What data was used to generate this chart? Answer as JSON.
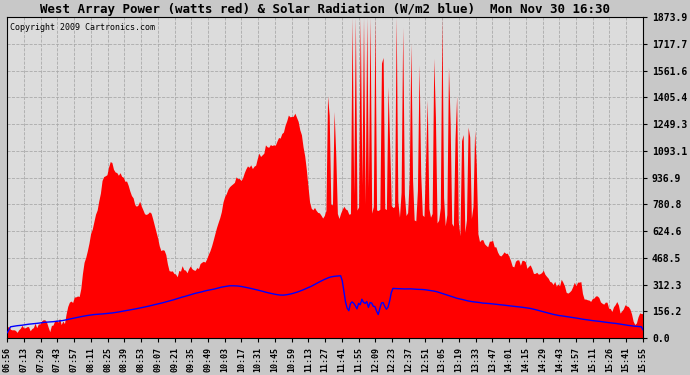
{
  "title": "West Array Power (watts red) & Solar Radiation (W/m2 blue)  Mon Nov 30 16:30",
  "copyright": "Copyright 2009 Cartronics.com",
  "ymax": 1873.9,
  "yticks": [
    0.0,
    156.2,
    312.3,
    468.5,
    624.6,
    780.8,
    936.9,
    1093.1,
    1249.3,
    1405.4,
    1561.6,
    1717.7,
    1873.9
  ],
  "xlabels": [
    "06:56",
    "07:13",
    "07:29",
    "07:43",
    "07:57",
    "08:11",
    "08:25",
    "08:39",
    "08:53",
    "09:07",
    "09:21",
    "09:35",
    "09:49",
    "10:03",
    "10:17",
    "10:31",
    "10:45",
    "10:59",
    "11:13",
    "11:27",
    "11:41",
    "11:55",
    "12:09",
    "12:23",
    "12:37",
    "12:51",
    "13:05",
    "13:19",
    "13:33",
    "13:47",
    "14:01",
    "14:15",
    "14:29",
    "14:43",
    "14:57",
    "15:11",
    "15:26",
    "15:41",
    "15:55"
  ],
  "red_color": "#ff0000",
  "blue_color": "#0000ff",
  "fig_facecolor": "#c8c8c8",
  "ax_facecolor": "#dcdcdc",
  "grid_color": "#aaaaaa",
  "title_fontsize": 9,
  "copyright_fontsize": 6,
  "tick_fontsize": 7,
  "xtick_fontsize": 6
}
